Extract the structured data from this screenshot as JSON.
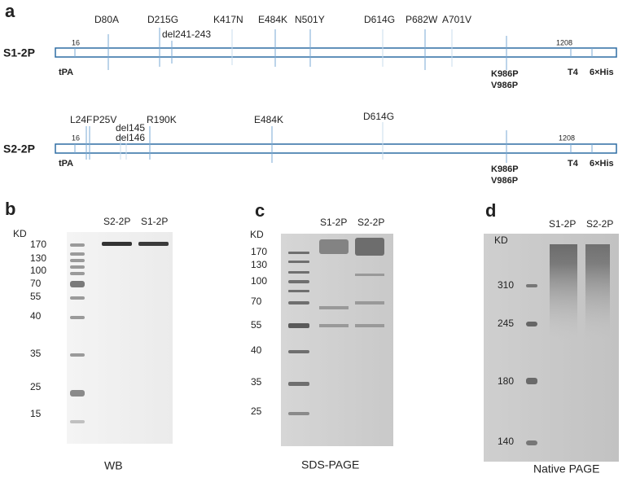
{
  "panel_a": {
    "label": "a",
    "constructs": [
      {
        "name": "S1-2P",
        "start": "16",
        "end": "1208",
        "mutations": [
          "D80A",
          "D215G",
          "del241-243",
          "K417N",
          "E484K",
          "N501Y",
          "D614G",
          "P682W",
          "A701V"
        ],
        "tags": [
          "tPA",
          "K986P",
          "V986P",
          "T4",
          "6×His"
        ]
      },
      {
        "name": "S2-2P",
        "start": "16",
        "end": "1208",
        "mutations": [
          "L24F",
          "P25V",
          "del145",
          "del146",
          "R190K",
          "E484K",
          "D614G"
        ],
        "tags": [
          "tPA",
          "K986P",
          "V986P",
          "T4",
          "6×His"
        ]
      }
    ]
  },
  "panel_b": {
    "label": "b",
    "unit": "KD",
    "markers": [
      "170",
      "130",
      "100",
      "70",
      "55",
      "40",
      "35",
      "25",
      "15"
    ],
    "lanes": [
      "S2-2P",
      "S1-2P"
    ],
    "caption": "WB"
  },
  "panel_c": {
    "label": "c",
    "unit": "KD",
    "markers": [
      "170",
      "130",
      "100",
      "70",
      "55",
      "40",
      "35",
      "25"
    ],
    "lanes": [
      "S1-2P",
      "S2-2P"
    ],
    "caption": "SDS-PAGE"
  },
  "panel_d": {
    "label": "d",
    "unit": "KD",
    "markers": [
      "310",
      "245",
      "180",
      "140"
    ],
    "lanes": [
      "S1-2P",
      "S2-2P"
    ],
    "caption": "Native PAGE"
  }
}
